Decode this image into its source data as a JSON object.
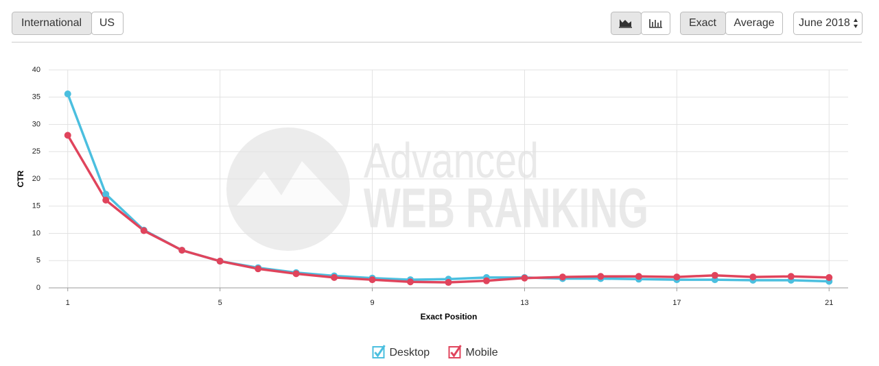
{
  "controls": {
    "region": [
      "International",
      "US"
    ],
    "mode": [
      "Exact",
      "Average"
    ],
    "month": "June 2018"
  },
  "watermark": [
    "Advanced",
    "WEB RANKING"
  ],
  "chart_data": {
    "type": "line",
    "x_label": "Exact Position",
    "y_label": "CTR",
    "x": [
      1,
      2,
      3,
      4,
      5,
      6,
      7,
      8,
      9,
      10,
      11,
      12,
      13,
      14,
      15,
      16,
      17,
      18,
      19,
      20,
      21
    ],
    "series": [
      {
        "name": "Desktop",
        "color": "#4bbfdf",
        "values": [
          35.6,
          17.2,
          10.6,
          6.9,
          4.9,
          3.7,
          2.8,
          2.2,
          1.8,
          1.5,
          1.6,
          1.9,
          1.9,
          1.7,
          1.7,
          1.6,
          1.5,
          1.5,
          1.4,
          1.4,
          1.2
        ]
      },
      {
        "name": "Mobile",
        "color": "#e0445c",
        "values": [
          28.0,
          16.1,
          10.5,
          6.9,
          4.9,
          3.5,
          2.6,
          1.9,
          1.5,
          1.1,
          1.0,
          1.3,
          1.8,
          2.0,
          2.1,
          2.1,
          2.0,
          2.3,
          2.0,
          2.1,
          1.9
        ]
      }
    ],
    "xlim": [
      0.5,
      21.5
    ],
    "xticks": [
      1,
      5,
      9,
      13,
      17,
      21
    ],
    "ylim": [
      0,
      40
    ],
    "yticks": [
      0,
      5,
      10,
      15,
      20,
      25,
      30,
      35,
      40
    ],
    "grid": true,
    "legend": "bottom"
  }
}
